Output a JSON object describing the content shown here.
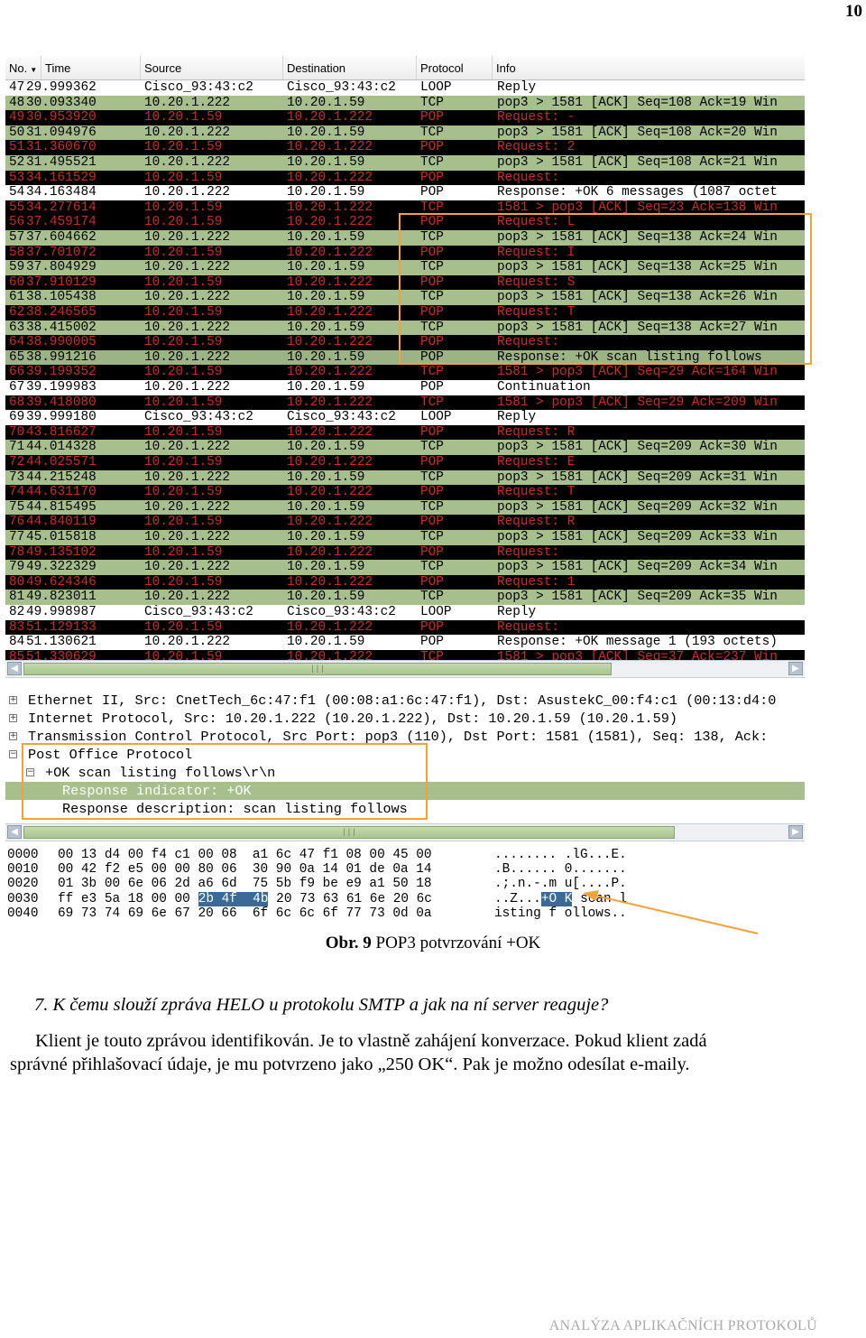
{
  "page_number": "10",
  "packet_list": {
    "columns": [
      "No.",
      "Time",
      "Source",
      "Destination",
      "Protocol",
      "Info"
    ],
    "rows": [
      {
        "no": "47",
        "time": "29.999362",
        "src": "Cisco_93:43:c2",
        "dst": "Cisco_93:43:c2",
        "proto": "LOOP",
        "info": "Reply",
        "style": "loop"
      },
      {
        "no": "48",
        "time": "30.093340",
        "src": "10.20.1.222",
        "dst": "10.20.1.59",
        "proto": "TCP",
        "info": "pop3 > 1581 [ACK] Seq=108 Ack=19 Win",
        "style": "tcp-ok"
      },
      {
        "no": "49",
        "time": "30.953920",
        "src": "10.20.1.59",
        "dst": "10.20.1.222",
        "proto": "POP",
        "info": "Request: -",
        "style": "pop-req"
      },
      {
        "no": "50",
        "time": "31.094976",
        "src": "10.20.1.222",
        "dst": "10.20.1.59",
        "proto": "TCP",
        "info": "pop3 > 1581 [ACK] Seq=108 Ack=20 Win",
        "style": "tcp-ok"
      },
      {
        "no": "51",
        "time": "31.360670",
        "src": "10.20.1.59",
        "dst": "10.20.1.222",
        "proto": "POP",
        "info": "Request: 2",
        "style": "pop-req"
      },
      {
        "no": "52",
        "time": "31.495521",
        "src": "10.20.1.222",
        "dst": "10.20.1.59",
        "proto": "TCP",
        "info": "pop3 > 1581 [ACK] Seq=108 Ack=21 Win",
        "style": "tcp-ok"
      },
      {
        "no": "53",
        "time": "34.161529",
        "src": "10.20.1.59",
        "dst": "10.20.1.222",
        "proto": "POP",
        "info": "Request:",
        "style": "pop-req"
      },
      {
        "no": "54",
        "time": "34.163484",
        "src": "10.20.1.222",
        "dst": "10.20.1.59",
        "proto": "POP",
        "info": "Response: +OK 6 messages (1087 octet",
        "style": "pop-resp"
      },
      {
        "no": "55",
        "time": "34.277614",
        "src": "10.20.1.59",
        "dst": "10.20.1.222",
        "proto": "TCP",
        "info": "1581 > pop3 [ACK] Seq=23 Ack=138 Win",
        "style": "tcp-alt"
      },
      {
        "no": "56",
        "time": "37.459174",
        "src": "10.20.1.59",
        "dst": "10.20.1.222",
        "proto": "POP",
        "info": "Request: L",
        "style": "pop-req"
      },
      {
        "no": "57",
        "time": "37.604662",
        "src": "10.20.1.222",
        "dst": "10.20.1.59",
        "proto": "TCP",
        "info": "pop3 > 1581 [ACK] Seq=138 Ack=24 Win",
        "style": "tcp-ok"
      },
      {
        "no": "58",
        "time": "37.701072",
        "src": "10.20.1.59",
        "dst": "10.20.1.222",
        "proto": "POP",
        "info": "Request: I",
        "style": "pop-req"
      },
      {
        "no": "59",
        "time": "37.804929",
        "src": "10.20.1.222",
        "dst": "10.20.1.59",
        "proto": "TCP",
        "info": "pop3 > 1581 [ACK] Seq=138 Ack=25 Win",
        "style": "tcp-ok"
      },
      {
        "no": "60",
        "time": "37.910129",
        "src": "10.20.1.59",
        "dst": "10.20.1.222",
        "proto": "POP",
        "info": "Request: S",
        "style": "pop-req"
      },
      {
        "no": "61",
        "time": "38.105438",
        "src": "10.20.1.222",
        "dst": "10.20.1.59",
        "proto": "TCP",
        "info": "pop3 > 1581 [ACK] Seq=138 Ack=26 Win",
        "style": "tcp-ok"
      },
      {
        "no": "62",
        "time": "38.246565",
        "src": "10.20.1.59",
        "dst": "10.20.1.222",
        "proto": "POP",
        "info": "Request: T",
        "style": "pop-req"
      },
      {
        "no": "63",
        "time": "38.415002",
        "src": "10.20.1.222",
        "dst": "10.20.1.59",
        "proto": "TCP",
        "info": "pop3 > 1581 [ACK] Seq=138 Ack=27 Win",
        "style": "tcp-ok"
      },
      {
        "no": "64",
        "time": "38.990005",
        "src": "10.20.1.59",
        "dst": "10.20.1.222",
        "proto": "POP",
        "info": "Request:",
        "style": "pop-req"
      },
      {
        "no": "65",
        "time": "38.991216",
        "src": "10.20.1.222",
        "dst": "10.20.1.59",
        "proto": "POP",
        "info": "Response: +OK scan listing follows",
        "style": "hl"
      },
      {
        "no": "66",
        "time": "39.199352",
        "src": "10.20.1.59",
        "dst": "10.20.1.222",
        "proto": "TCP",
        "info": "1581 > pop3 [ACK] Seq=29 Ack=164 Win",
        "style": "tcp-alt"
      },
      {
        "no": "67",
        "time": "39.199983",
        "src": "10.20.1.222",
        "dst": "10.20.1.59",
        "proto": "POP",
        "info": "Continuation",
        "style": "pop-resp"
      },
      {
        "no": "68",
        "time": "39.418080",
        "src": "10.20.1.59",
        "dst": "10.20.1.222",
        "proto": "TCP",
        "info": "1581 > pop3 [ACK] Seq=29 Ack=209 Win",
        "style": "tcp-alt"
      },
      {
        "no": "69",
        "time": "39.999180",
        "src": "Cisco_93:43:c2",
        "dst": "Cisco_93:43:c2",
        "proto": "LOOP",
        "info": "Reply",
        "style": "loop"
      },
      {
        "no": "70",
        "time": "43.816627",
        "src": "10.20.1.59",
        "dst": "10.20.1.222",
        "proto": "POP",
        "info": "Request: R",
        "style": "pop-req"
      },
      {
        "no": "71",
        "time": "44.014328",
        "src": "10.20.1.222",
        "dst": "10.20.1.59",
        "proto": "TCP",
        "info": "pop3 > 1581 [ACK] Seq=209 Ack=30 Win",
        "style": "tcp-ok"
      },
      {
        "no": "72",
        "time": "44.025571",
        "src": "10.20.1.59",
        "dst": "10.20.1.222",
        "proto": "POP",
        "info": "Request: E",
        "style": "pop-req"
      },
      {
        "no": "73",
        "time": "44.215248",
        "src": "10.20.1.222",
        "dst": "10.20.1.59",
        "proto": "TCP",
        "info": "pop3 > 1581 [ACK] Seq=209 Ack=31 Win",
        "style": "tcp-ok"
      },
      {
        "no": "74",
        "time": "44.631170",
        "src": "10.20.1.59",
        "dst": "10.20.1.222",
        "proto": "POP",
        "info": "Request: T",
        "style": "pop-req"
      },
      {
        "no": "75",
        "time": "44.815495",
        "src": "10.20.1.222",
        "dst": "10.20.1.59",
        "proto": "TCP",
        "info": "pop3 > 1581 [ACK] Seq=209 Ack=32 Win",
        "style": "tcp-ok"
      },
      {
        "no": "76",
        "time": "44.840119",
        "src": "10.20.1.59",
        "dst": "10.20.1.222",
        "proto": "POP",
        "info": "Request: R",
        "style": "pop-req"
      },
      {
        "no": "77",
        "time": "45.015818",
        "src": "10.20.1.222",
        "dst": "10.20.1.59",
        "proto": "TCP",
        "info": "pop3 > 1581 [ACK] Seq=209 Ack=33 Win",
        "style": "tcp-ok"
      },
      {
        "no": "78",
        "time": "49.135102",
        "src": "10.20.1.59",
        "dst": "10.20.1.222",
        "proto": "POP",
        "info": "Request:",
        "style": "pop-req"
      },
      {
        "no": "79",
        "time": "49.322329",
        "src": "10.20.1.222",
        "dst": "10.20.1.59",
        "proto": "TCP",
        "info": "pop3 > 1581 [ACK] Seq=209 Ack=34 Win",
        "style": "tcp-ok"
      },
      {
        "no": "80",
        "time": "49.624346",
        "src": "10.20.1.59",
        "dst": "10.20.1.222",
        "proto": "POP",
        "info": "Request: 1",
        "style": "pop-req"
      },
      {
        "no": "81",
        "time": "49.823011",
        "src": "10.20.1.222",
        "dst": "10.20.1.59",
        "proto": "TCP",
        "info": "pop3 > 1581 [ACK] Seq=209 Ack=35 Win",
        "style": "tcp-ok"
      },
      {
        "no": "82",
        "time": "49.998987",
        "src": "Cisco_93:43:c2",
        "dst": "Cisco_93:43:c2",
        "proto": "LOOP",
        "info": "Reply",
        "style": "loop"
      },
      {
        "no": "83",
        "time": "51.129133",
        "src": "10.20.1.59",
        "dst": "10.20.1.222",
        "proto": "POP",
        "info": "Request:",
        "style": "pop-req"
      },
      {
        "no": "84",
        "time": "51.130621",
        "src": "10.20.1.222",
        "dst": "10.20.1.59",
        "proto": "POP",
        "info": "Response: +OK message 1 (193 octets)",
        "style": "pop-resp"
      },
      {
        "no": "85",
        "time": "51.330629",
        "src": "10.20.1.59",
        "dst": "10.20.1.222",
        "proto": "TCP",
        "info": "1581 > pop3 [ACK] Seq=37 Ack=237 Win",
        "style": "tcp-alt"
      }
    ]
  },
  "details": {
    "rows": [
      {
        "exp": "+",
        "indent": 0,
        "text": "Ethernet II, Src: CnetTech_6c:47:f1 (00:08:a1:6c:47:f1), Dst: AsustekC_00:f4:c1 (00:13:d4:0"
      },
      {
        "exp": "+",
        "indent": 0,
        "text": "Internet Protocol, Src: 10.20.1.222 (10.20.1.222), Dst: 10.20.1.59 (10.20.1.59)"
      },
      {
        "exp": "+",
        "indent": 0,
        "text": "Transmission Control Protocol, Src Port: pop3 (110), Dst Port: 1581 (1581), Seq: 138, Ack:"
      },
      {
        "exp": "−",
        "indent": 0,
        "text": "Post Office Protocol"
      },
      {
        "exp": "−",
        "indent": 1,
        "text": "+OK scan listing follows\\r\\n"
      },
      {
        "exp": "",
        "indent": 2,
        "text": "Response indicator: +OK",
        "selected": true
      },
      {
        "exp": "",
        "indent": 2,
        "text": "Response description: scan listing follows"
      }
    ]
  },
  "hex": {
    "rows": [
      {
        "offset": "0000",
        "bytes_pre": "00 13 d4 00 f4 c1 00 08  a1 6c 47 f1 08 00 45 00",
        "bytes_sel": "",
        "bytes_post": "",
        "ascii_pre": "........ .lG...E.",
        "ascii_sel": "",
        "ascii_post": ""
      },
      {
        "offset": "0010",
        "bytes_pre": "00 42 f2 e5 00 00 80 06  30 90 0a 14 01 de 0a 14",
        "bytes_sel": "",
        "bytes_post": "",
        "ascii_pre": ".B...... 0.......",
        "ascii_sel": "",
        "ascii_post": ""
      },
      {
        "offset": "0020",
        "bytes_pre": "01 3b 00 6e 06 2d a6 6d  75 5b f9 be e9 a1 50 18",
        "bytes_sel": "",
        "bytes_post": "",
        "ascii_pre": ".;.n.-.m u[....P.",
        "ascii_sel": "",
        "ascii_post": ""
      },
      {
        "offset": "0030",
        "bytes_pre": "ff e3 5a 18 00 00 ",
        "bytes_sel": "2b 4f  4b",
        "bytes_post": " 20 73 63 61 6e 20 6c",
        "ascii_pre": "..Z...",
        "ascii_sel": "+O K",
        "ascii_post": " scan l"
      },
      {
        "offset": "0040",
        "bytes_pre": "69 73 74 69 6e 67 20 66  6f 6c 6c 6f 77 73 0d 0a",
        "bytes_sel": "",
        "bytes_post": "",
        "ascii_pre": "isting f ollows..",
        "ascii_sel": "",
        "ascii_post": ""
      }
    ]
  },
  "caption": {
    "label": "Obr. 9",
    "text": "POP3 potvrzování +OK"
  },
  "question": "7.  K čemu slouží zpráva HELO u protokolu SMTP a jak na ní server reaguje?",
  "answer": {
    "line1": "Klient je touto zprávou identifikován. Je to vlastně zahájení konverzace. Pokud klient zadá",
    "line2": "správné přihlašovací údaje, je mu potvrzeno jako „250 OK“. Pak je možno odesílat e-maily."
  },
  "footer": "ANALÝZA APLIKAČNÍCH PROTOKOLŮ",
  "colors": {
    "tcp_green": "#a7bf8d",
    "pop_black": "#000000",
    "pop_red": "#cd2b2b",
    "highlight_orange": "#f2a23a",
    "hex_select": "#3b6a96"
  }
}
